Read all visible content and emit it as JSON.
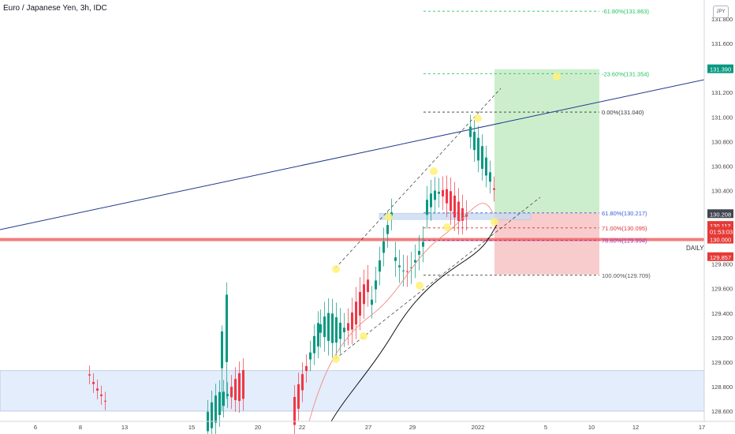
{
  "symbol_title": "Euro / Japanese Yen, 3h, IDC",
  "currency_badge": "JPY",
  "daily_label": "DAILY",
  "chart_data": {
    "type": "candlestick",
    "x_tick_labels": [
      "6",
      "8",
      "13",
      "15",
      "20",
      "22",
      "27",
      "29",
      "2022",
      "5",
      "10",
      "12",
      "17"
    ],
    "y_tick_labels": [
      "131.800",
      "131.600",
      "131.400",
      "131.200",
      "131.000",
      "130.800",
      "130.600",
      "130.400",
      "130.200",
      "130.000",
      "129.800",
      "129.600",
      "129.400",
      "129.200",
      "129.000",
      "128.800",
      "128.600"
    ],
    "ylim": [
      128.55,
      132.0
    ],
    "fib_levels": [
      {
        "label": "-61.80%(131.863)",
        "price": 131.863,
        "color": "#22c55e"
      },
      {
        "label": "-23.60%(131.354)",
        "price": 131.354,
        "color": "#22c55e"
      },
      {
        "label": "0.00%(131.040)",
        "price": 131.04,
        "color": "#333333"
      },
      {
        "label": "61.80%(130.217)",
        "price": 130.217,
        "color": "#3b5bdb"
      },
      {
        "label": "71.00%(130.095)",
        "price": 130.095,
        "color": "#e03131"
      },
      {
        "label": "78.60%(129.994)",
        "price": 129.994,
        "color": "#9c36b5"
      },
      {
        "label": "100.00%(129.709)",
        "price": 129.709,
        "color": "#555555"
      }
    ],
    "price_tags": [
      {
        "label": "131.390",
        "price": 131.39,
        "color": "#089981"
      },
      {
        "label": "130.208",
        "price": 130.208,
        "color": "#434651"
      },
      {
        "label": "130.112",
        "price": 130.112,
        "color": "#e53935"
      },
      {
        "label": "01:53:03",
        "price": 130.065,
        "color": "#e53935"
      },
      {
        "label": "130.000",
        "price": 130.0,
        "color": "#e53935"
      },
      {
        "label": "129.857",
        "price": 129.857,
        "color": "#e53935"
      }
    ],
    "position": {
      "entry": 130.217,
      "target": 131.39,
      "stop": 129.857
    },
    "horizontal_line": 130.0,
    "demand_zone": [
      128.6,
      128.93
    ],
    "colors": {
      "up": "#089981",
      "down": "#f23645",
      "ema_fast": "#f28b82",
      "ema_slow": "#000000",
      "trendline": "#1e3a8a",
      "profit": "#c8ecc8",
      "loss": "#f7c6c6",
      "marker": "#fff176"
    }
  }
}
